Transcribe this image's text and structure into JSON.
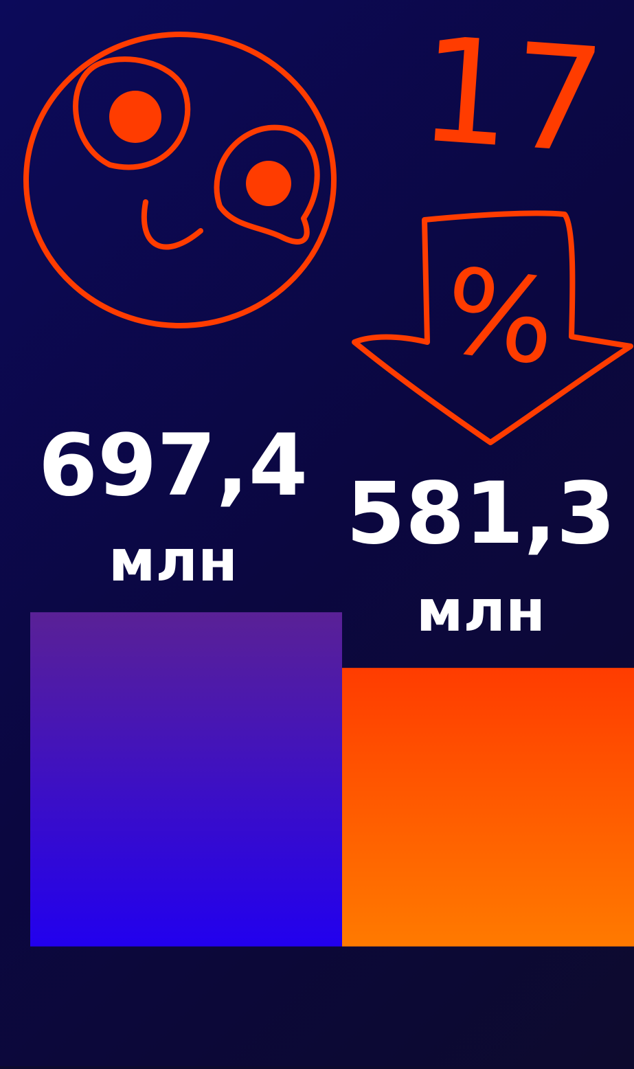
{
  "chart_data": {
    "type": "bar",
    "values": [
      697.4,
      581.3
    ],
    "value_labels": [
      "697,4",
      "581,3"
    ],
    "unit_label": "млн",
    "colors": [
      [
        "#5a2196",
        "#2200ee"
      ],
      [
        "#ff3c00",
        "#ff7a00"
      ]
    ],
    "ylim": [
      -250,
      1975
    ],
    "annotations": [
      "17",
      "%"
    ]
  }
}
